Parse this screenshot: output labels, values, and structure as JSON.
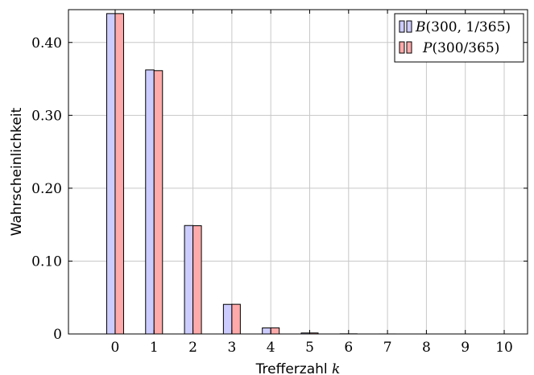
{
  "chart_data": {
    "type": "bar",
    "xlabel_text": "Trefferzahl ",
    "xlabel_var": "k",
    "ylabel": "Wahrscheinlichkeit",
    "categories": [
      "0",
      "1",
      "2",
      "3",
      "4",
      "5",
      "6",
      "7",
      "8",
      "9",
      "10"
    ],
    "xlim": [
      -1.2,
      10.6
    ],
    "ylim": [
      0,
      0.445
    ],
    "yticks": [
      0,
      0.1,
      0.2,
      0.3,
      0.4
    ],
    "ytick_labels": [
      "0",
      "0.10",
      "0.20",
      "0.30",
      "0.40"
    ],
    "grid": true,
    "legend_position": "top-right",
    "series": [
      {
        "name_italic": "B",
        "name_rest": "(300, 1/365)",
        "color": "#ccccff",
        "values": [
          0.4396,
          0.3623,
          0.1488,
          0.0406,
          0.0083,
          0.00135,
          0.00018,
          2e-05,
          0.0,
          0.0,
          0.0
        ]
      },
      {
        "name_italic": "P",
        "name_rest": "(300/365)",
        "color": "#ffaaaa",
        "values": [
          0.4396,
          0.3613,
          0.1485,
          0.0407,
          0.0084,
          0.00137,
          0.00019,
          2e-05,
          0.0,
          0.0,
          0.0
        ]
      }
    ]
  }
}
